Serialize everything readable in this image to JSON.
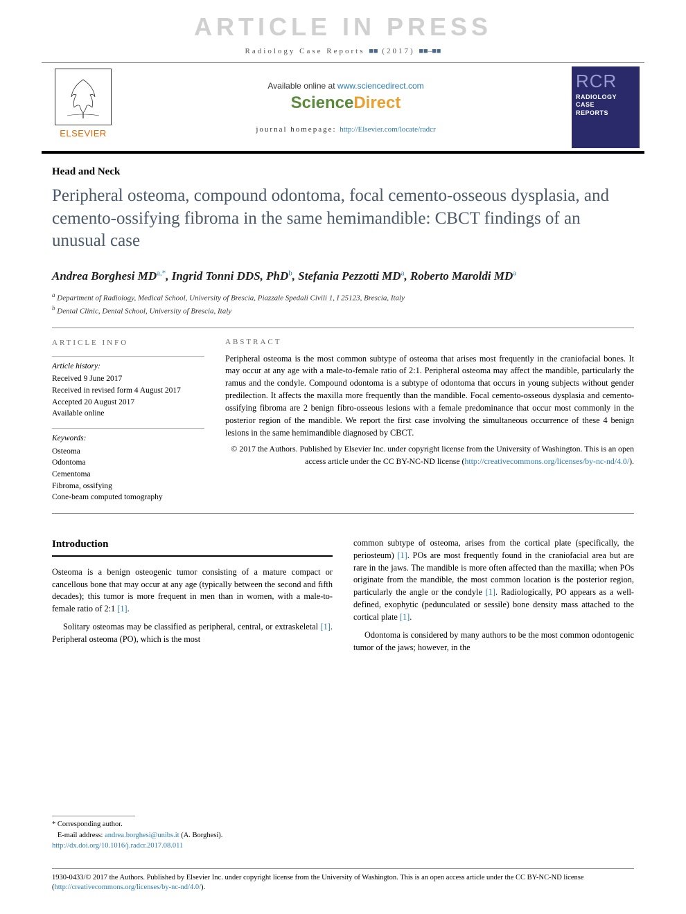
{
  "watermark": "ARTICLE IN PRESS",
  "citation": {
    "journal": "Radiology Case Reports",
    "issue": "(2017)",
    "pages_placeholder": "■■–■■",
    "vol_placeholder": "■■"
  },
  "banner": {
    "available_text": "Available online at ",
    "available_url": "www.sciencedirect.com",
    "sciencedirect": {
      "left": "Science",
      "right": "Direct"
    },
    "homepage_label": "journal homepage: ",
    "homepage_url": "http://Elsevier.com/locate/radcr",
    "elsevier_label": "ELSEVIER",
    "rcr": {
      "abbr": "RCR",
      "line1": "RADIOLOGY",
      "line2": "CASE",
      "line3": "REPORTS"
    }
  },
  "article": {
    "section": "Head and Neck",
    "title": "Peripheral osteoma, compound odontoma, focal cemento-osseous dysplasia, and cemento-ossifying fibroma in the same hemimandible: CBCT findings of an unusual case",
    "authors_html": "Andrea Borghesi MD<sup>a,*</sup>, Ingrid Tonni DDS, PhD<sup>b</sup>, Stefania Pezzotti MD<sup>a</sup>, Roberto Maroldi MD<sup>a</sup>",
    "affiliations": [
      {
        "sup": "a",
        "text": "Department of Radiology, Medical School, University of Brescia, Piazzale Spedali Civili 1, I 25123, Brescia, Italy"
      },
      {
        "sup": "b",
        "text": "Dental Clinic, Dental School, University of Brescia, Italy"
      }
    ]
  },
  "article_info": {
    "heading": "ARTICLE INFO",
    "history_label": "Article history:",
    "history": [
      "Received 9 June 2017",
      "Received in revised form 4 August 2017",
      "Accepted 20 August 2017",
      "Available online"
    ],
    "keywords_label": "Keywords:",
    "keywords": [
      "Osteoma",
      "Odontoma",
      "Cementoma",
      "Fibroma, ossifying",
      "Cone-beam computed tomography"
    ]
  },
  "abstract": {
    "heading": "ABSTRACT",
    "text": "Peripheral osteoma is the most common subtype of osteoma that arises most frequently in the craniofacial bones. It may occur at any age with a male-to-female ratio of 2:1. Peripheral osteoma may affect the mandible, particularly the ramus and the condyle. Compound odontoma is a subtype of odontoma that occurs in young subjects without gender predilection. It affects the maxilla more frequently than the mandible. Focal cemento-osseous dysplasia and cemento-ossifying fibroma are 2 benign fibro-osseous lesions with a female predominance that occur most commonly in the posterior region of the mandible. We report the first case involving the simultaneous occurrence of these 4 benign lesions in the same hemimandible diagnosed by CBCT.",
    "copyright": "© 2017 the Authors. Published by Elsevier Inc. under copyright license from the University of Washington. This is an open access article under the CC BY-NC-ND license (",
    "license_url": "http://creativecommons.org/licenses/by-nc-nd/4.0/",
    "copyright_close": ")."
  },
  "body": {
    "intro_heading": "Introduction",
    "col1_p1": "Osteoma is a benign osteogenic tumor consisting of a mature compact or cancellous bone that may occur at any age (typically between the second and fifth decades); this tumor is more frequent in men than in women, with a male-to-female ratio of 2:1 ",
    "col1_p1_ref": "[1]",
    "col1_p1_end": ".",
    "col1_p2": "Solitary osteomas may be classified as peripheral, central, or extraskeletal ",
    "col1_p2_ref": "[1]",
    "col1_p2_cont": ". Peripheral osteoma (PO), which is the most",
    "col2_p1": "common subtype of osteoma, arises from the cortical plate (specifically, the periosteum) ",
    "col2_p1_ref1": "[1]",
    "col2_p1_cont1": ". POs are most frequently found in the craniofacial area but are rare in the jaws. The mandible is more often affected than the maxilla; when POs originate from the mandible, the most common location is the posterior region, particularly the angle or the condyle ",
    "col2_p1_ref2": "[1]",
    "col2_p1_cont2": ". Radiologically, PO appears as a well-defined, exophytic (pedunculated or sessile) bone density mass attached to the cortical plate ",
    "col2_p1_ref3": "[1]",
    "col2_p1_end": ".",
    "col2_p2": "Odontoma is considered by many authors to be the most common odontogenic tumor of the jaws; however, in the"
  },
  "footnotes": {
    "corresponding": "* Corresponding author.",
    "email_label": "E-mail address: ",
    "email": "andrea.borghesi@unibs.it",
    "email_author": " (A. Borghesi).",
    "doi": "http://dx.doi.org/10.1016/j.radcr.2017.08.011"
  },
  "footer": {
    "issn": "1930-0433/© 2017 the Authors. Published by Elsevier Inc. under copyright license from the University of Washington. This is an open access article under the CC BY-NC-ND license (",
    "license_url": "http://creativecommons.org/licenses/by-nc-nd/4.0/",
    "close": ")."
  },
  "colors": {
    "link": "#2a7ab0",
    "title": "#4a5a6a",
    "elsevier": "#eb6500",
    "sd_green": "#5a8a3a",
    "sd_orange": "#e8a030",
    "rcr_bg": "#2a2a6a",
    "watermark": "#d0d0d0"
  }
}
